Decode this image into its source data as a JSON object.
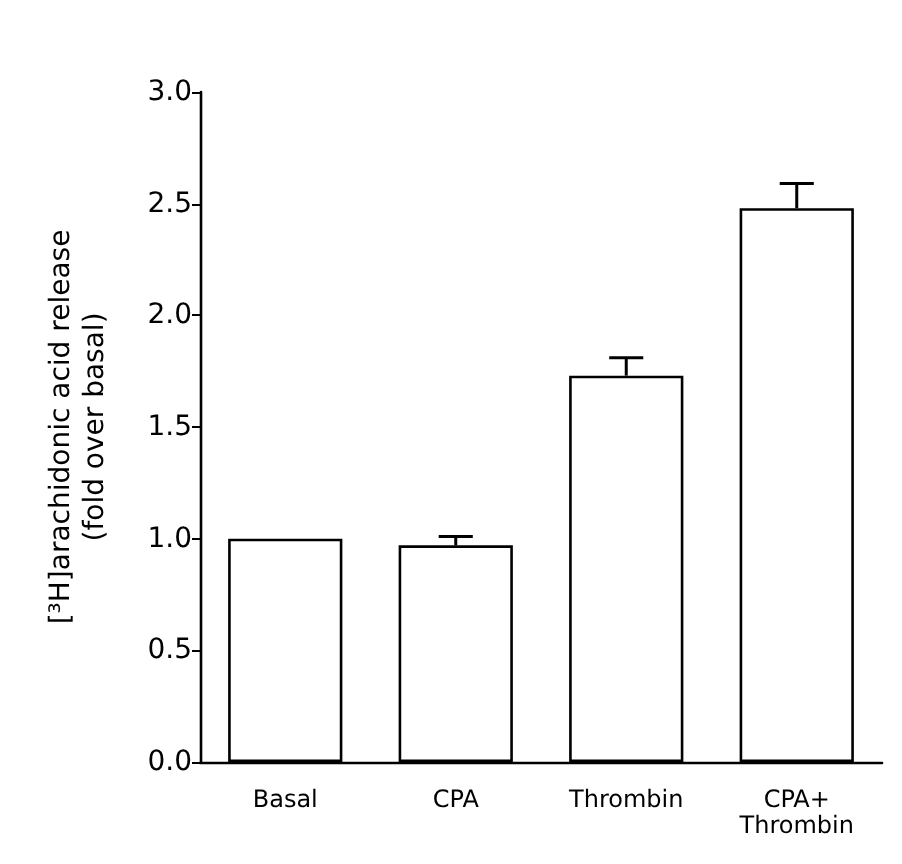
{
  "chart_data": {
    "type": "bar",
    "ylabel": "[³H]arachidonic acid release\n(fold over basal)",
    "categories": [
      "Basal",
      "CPA",
      "Thrombin",
      "CPA+\nThrombin"
    ],
    "values": [
      1.0,
      0.97,
      1.73,
      2.48
    ],
    "errors": [
      null,
      [
        0.97,
        1.01
      ],
      [
        1.73,
        1.81
      ],
      [
        2.48,
        2.59
      ]
    ],
    "color": "#ffffff",
    "ylim": [
      0,
      3.0
    ],
    "yticks": [
      {
        "value": 0,
        "label": "0.0"
      },
      {
        "value": 0.5,
        "label": "0.5"
      },
      {
        "value": 1.0,
        "label": "1.0"
      },
      {
        "value": 1.5,
        "label": "1.5"
      },
      {
        "value": 2.0,
        "label": "2.0"
      },
      {
        "value": 2.5,
        "label": "2.5"
      },
      {
        "value": 3.0,
        "label": "3.0"
      }
    ],
    "grid": false
  }
}
